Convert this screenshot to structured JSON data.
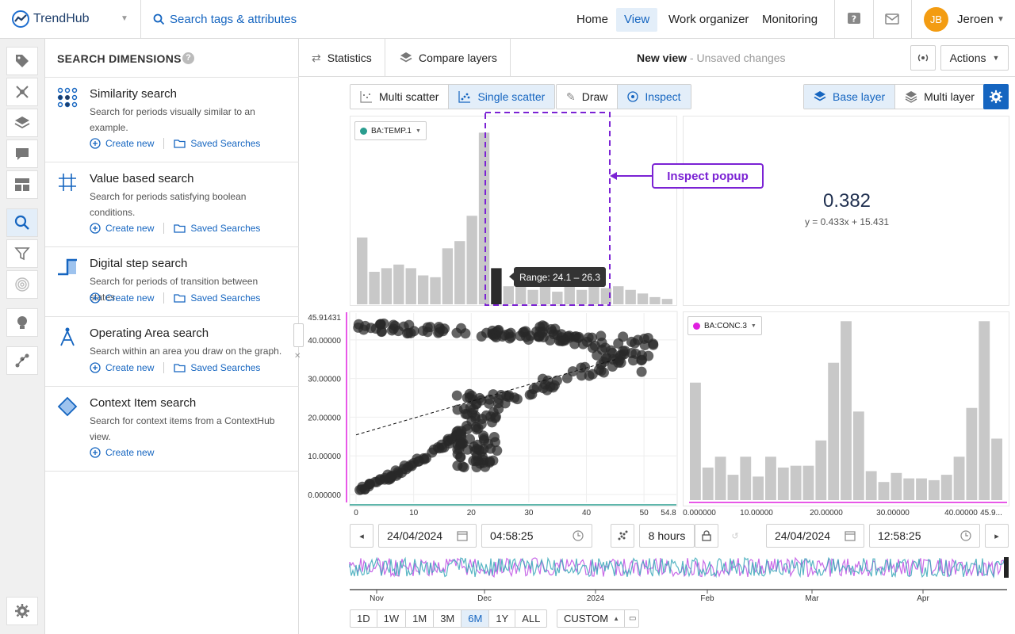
{
  "app": {
    "name": "TrendHub",
    "search_placeholder": "Search tags & attributes"
  },
  "nav": {
    "items": [
      "Home",
      "View",
      "Work organizer",
      "Monitoring"
    ],
    "active": "View"
  },
  "user": {
    "initials": "JB",
    "name": "Jeroen"
  },
  "panel": {
    "title": "SEARCH DIMENSIONS",
    "help": "?",
    "cards": [
      {
        "title": "Similarity search",
        "desc": "Search for periods visually similar to an example.",
        "create": "Create new",
        "saved": "Saved Searches",
        "icon": "similarity-icon"
      },
      {
        "title": "Value based search",
        "desc": "Search for periods satisfying boolean conditions.",
        "create": "Create new",
        "saved": "Saved Searches",
        "icon": "grid-hash-icon"
      },
      {
        "title": "Digital step search",
        "desc": "Search for periods of transition between states.",
        "create": "Create new",
        "saved": "Saved Searches",
        "icon": "step-icon"
      },
      {
        "title": "Operating Area search",
        "desc": "Search within an area you draw on the graph.",
        "create": "Create new",
        "saved": "Saved Searches",
        "icon": "compass-icon"
      },
      {
        "title": "Context Item search",
        "desc": "Search for context items from a ContextHub view.",
        "create": "Create new",
        "icon": "diamond-icon"
      }
    ]
  },
  "toolbar": {
    "statistics": "Statistics",
    "compare": "Compare layers",
    "view_title": "New view",
    "view_status": "- Unsaved changes",
    "actions": "Actions"
  },
  "view_toolbar": {
    "multi_scatter": "Multi scatter",
    "single_scatter": "Single scatter",
    "draw": "Draw",
    "inspect": "Inspect",
    "base_layer": "Base layer",
    "multi_layer": "Multi layer"
  },
  "colors": {
    "accent": "#1565c0",
    "teal": "#2a9d8f",
    "magenta": "#e020e0",
    "purple": "#7b22d4"
  },
  "annotation": {
    "inspect_popup": "Inspect popup",
    "tooltip": "Range: 24.1 – 26.3"
  },
  "correlation": {
    "value": "0.382",
    "equation": "y = 0.433x + 15.431"
  },
  "time": {
    "start_date": "24/04/2024",
    "start_time": "04:58:25",
    "duration": "8 hours",
    "end_date": "24/04/2024",
    "end_time": "12:58:25"
  },
  "ranges": {
    "options": [
      "1D",
      "1W",
      "1M",
      "3M",
      "6M",
      "1Y",
      "ALL"
    ],
    "selected": "6M",
    "custom": "CUSTOM"
  },
  "timeline": {
    "labels": [
      "Nov",
      "Dec",
      "2024",
      "Feb",
      "Mar",
      "Apr"
    ]
  },
  "chart_data": [
    {
      "type": "bar",
      "name": "x-histogram",
      "legend": "BA:TEMP.1",
      "xlim": [
        0,
        54.8
      ],
      "values": [
        0.37,
        0.18,
        0.2,
        0.22,
        0.2,
        0.16,
        0.15,
        0.31,
        0.35,
        0.49,
        0.95,
        0.2,
        0.1,
        0.1,
        0.08,
        0.1,
        0.07,
        0.1,
        0.08,
        0.1,
        0.09,
        0.1,
        0.08,
        0.06,
        0.04,
        0.03
      ],
      "highlight_index": 11,
      "highlight_range": "Range: 24.1 – 26.3"
    },
    {
      "type": "scatter",
      "name": "scatter",
      "xlabel": "BA:TEMP.1",
      "ylabel": "BA:CONC.3",
      "xticks": [
        "0",
        "10",
        "20",
        "30",
        "40",
        "50",
        "54.8"
      ],
      "yticks": [
        "0.000000",
        "10.00000",
        "20.00000",
        "30.00000",
        "40.00000",
        "45.91431"
      ],
      "xlim": [
        0,
        54.8
      ],
      "ylim": [
        0,
        45.91431
      ],
      "trend": {
        "slope": 0.433,
        "intercept": 15.431
      }
    },
    {
      "type": "bar",
      "name": "y-histogram",
      "legend": "BA:CONC.3",
      "xlim": [
        0,
        45.91431
      ],
      "xticks": [
        "0.000000",
        "10.00000",
        "20.00000",
        "30.00000",
        "40.00000",
        "45.9..."
      ],
      "values": [
        0.65,
        0.18,
        0.24,
        0.14,
        0.24,
        0.13,
        0.24,
        0.18,
        0.19,
        0.19,
        0.33,
        0.76,
        0.99,
        0.49,
        0.16,
        0.1,
        0.15,
        0.12,
        0.12,
        0.11,
        0.14,
        0.24,
        0.51,
        0.99,
        0.34
      ]
    }
  ]
}
